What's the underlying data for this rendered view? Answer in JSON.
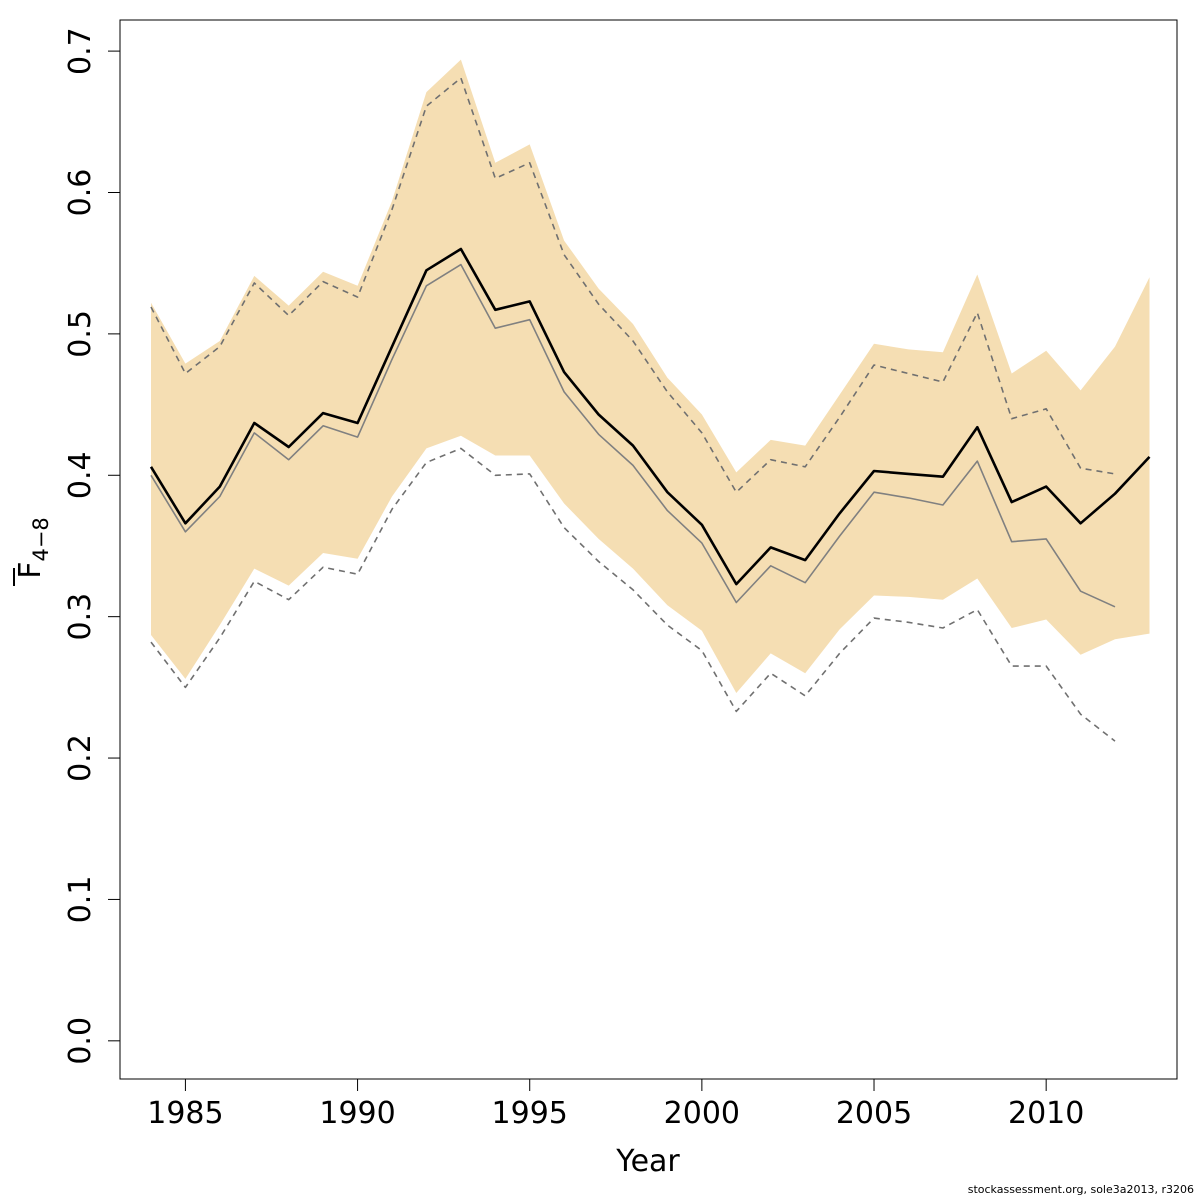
{
  "chart_data": {
    "type": "line",
    "xlabel": "Year",
    "ylabel": {
      "main": "F",
      "subscript": "4−8",
      "overbar": true
    },
    "xlim": [
      1983.1,
      2013.8
    ],
    "ylim": [
      -0.027,
      0.722
    ],
    "x_ticks": [
      1985,
      1990,
      1995,
      2000,
      2005,
      2010
    ],
    "y_ticks": [
      0.0,
      0.1,
      0.2,
      0.3,
      0.4,
      0.5,
      0.6,
      0.7
    ],
    "y_tick_labels": [
      "0.0",
      "0.1",
      "0.2",
      "0.3",
      "0.4",
      "0.5",
      "0.6",
      "0.7"
    ],
    "band": {
      "x": [
        1984,
        1985,
        1986,
        1987,
        1988,
        1989,
        1990,
        1991,
        1992,
        1993,
        1994,
        1995,
        1996,
        1997,
        1998,
        1999,
        2000,
        2001,
        2002,
        2003,
        2004,
        2005,
        2006,
        2007,
        2008,
        2009,
        2010,
        2011,
        2012,
        2013
      ],
      "lower": [
        0.287,
        0.256,
        0.294,
        0.334,
        0.322,
        0.345,
        0.341,
        0.385,
        0.419,
        0.428,
        0.414,
        0.414,
        0.38,
        0.355,
        0.334,
        0.308,
        0.29,
        0.246,
        0.274,
        0.26,
        0.291,
        0.315,
        0.314,
        0.312,
        0.327,
        0.292,
        0.298,
        0.273,
        0.284,
        0.288
      ],
      "upper": [
        0.522,
        0.479,
        0.495,
        0.541,
        0.52,
        0.544,
        0.534,
        0.594,
        0.671,
        0.694,
        0.621,
        0.634,
        0.566,
        0.532,
        0.507,
        0.469,
        0.443,
        0.402,
        0.425,
        0.421,
        0.457,
        0.493,
        0.489,
        0.487,
        0.542,
        0.472,
        0.488,
        0.46,
        0.491,
        0.54
      ],
      "color": "#F5DEB3"
    },
    "series": [
      {
        "style": "dashed-upper",
        "color": "#707070",
        "x": [
          1984,
          1985,
          1986,
          1987,
          1988,
          1989,
          1990,
          1991,
          1992,
          1993,
          1994,
          1995,
          1996,
          1997,
          1998,
          1999,
          2000,
          2001,
          2002,
          2003,
          2004,
          2005,
          2006,
          2007,
          2008,
          2009,
          2010,
          2011,
          2012
        ],
        "values": [
          0.519,
          0.472,
          0.491,
          0.536,
          0.513,
          0.537,
          0.526,
          0.588,
          0.661,
          0.681,
          0.61,
          0.621,
          0.556,
          0.521,
          0.495,
          0.459,
          0.43,
          0.388,
          0.411,
          0.406,
          0.441,
          0.478,
          0.472,
          0.466,
          0.515,
          0.44,
          0.447,
          0.405,
          0.401
        ]
      },
      {
        "style": "dashed-lower",
        "color": "#707070",
        "x": [
          1984,
          1985,
          1986,
          1987,
          1988,
          1989,
          1990,
          1991,
          1992,
          1993,
          1994,
          1995,
          1996,
          1997,
          1998,
          1999,
          2000,
          2001,
          2002,
          2003,
          2004,
          2005,
          2006,
          2007,
          2008,
          2009,
          2010,
          2011,
          2012
        ],
        "values": [
          0.282,
          0.25,
          0.285,
          0.325,
          0.312,
          0.335,
          0.33,
          0.376,
          0.409,
          0.419,
          0.4,
          0.401,
          0.363,
          0.339,
          0.319,
          0.294,
          0.276,
          0.233,
          0.26,
          0.244,
          0.274,
          0.299,
          0.296,
          0.292,
          0.305,
          0.265,
          0.265,
          0.231,
          0.212
        ]
      },
      {
        "style": "thin",
        "color": "#808080",
        "x": [
          1984,
          1985,
          1986,
          1987,
          1988,
          1989,
          1990,
          1991,
          1992,
          1993,
          1994,
          1995,
          1996,
          1997,
          1998,
          1999,
          2000,
          2001,
          2002,
          2003,
          2004,
          2005,
          2006,
          2007,
          2008,
          2009,
          2010,
          2011,
          2012
        ],
        "values": [
          0.4,
          0.36,
          0.385,
          0.43,
          0.411,
          0.435,
          0.427,
          0.482,
          0.534,
          0.549,
          0.504,
          0.51,
          0.459,
          0.429,
          0.407,
          0.375,
          0.352,
          0.31,
          0.336,
          0.324,
          0.357,
          0.388,
          0.384,
          0.379,
          0.41,
          0.353,
          0.355,
          0.318,
          0.307
        ]
      },
      {
        "style": "thick",
        "color": "#000000",
        "x": [
          1984,
          1985,
          1986,
          1987,
          1988,
          1989,
          1990,
          1991,
          1992,
          1993,
          1994,
          1995,
          1996,
          1997,
          1998,
          1999,
          2000,
          2001,
          2002,
          2003,
          2004,
          2005,
          2006,
          2007,
          2008,
          2009,
          2010,
          2011,
          2012,
          2013
        ],
        "values": [
          0.406,
          0.366,
          0.392,
          0.437,
          0.42,
          0.444,
          0.437,
          0.491,
          0.545,
          0.56,
          0.517,
          0.523,
          0.473,
          0.443,
          0.421,
          0.388,
          0.365,
          0.323,
          0.349,
          0.34,
          0.373,
          0.403,
          0.401,
          0.399,
          0.434,
          0.381,
          0.392,
          0.366,
          0.387,
          0.413
        ]
      }
    ]
  },
  "footer": "stockassessment.org, sole3a2013, r3206"
}
